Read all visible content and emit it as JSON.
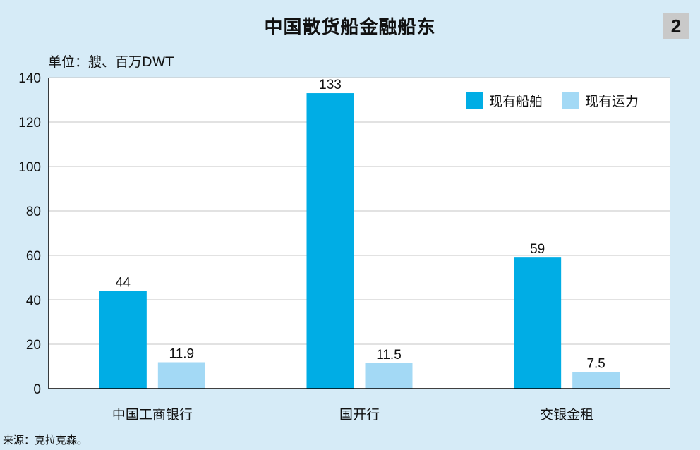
{
  "header": {
    "title": "中国散货船金融船东",
    "badge": "2",
    "unit": "单位：艘、百万DWT"
  },
  "footer": {
    "source": "来源：克拉克森。"
  },
  "colors": {
    "background": "#d6ebf7",
    "series_1": "#00ade5",
    "series_2": "#a3d9f5",
    "badge": "#c9c9c9"
  },
  "chart_data": {
    "type": "bar",
    "categories": [
      "中国工商银行",
      "国开行",
      "交银金租"
    ],
    "series": [
      {
        "name": "现有船舶",
        "values": [
          44,
          133,
          59
        ],
        "labels": [
          "44",
          "133",
          "59"
        ]
      },
      {
        "name": "现有运力",
        "values": [
          11.9,
          11.5,
          7.5
        ],
        "labels": [
          "11.9",
          "11.5",
          "7.5"
        ]
      }
    ],
    "yticks": [
      "0",
      "20",
      "40",
      "60",
      "80",
      "100",
      "120",
      "140"
    ],
    "ylim": [
      0,
      140
    ],
    "grid": true,
    "legend": "top-right"
  }
}
